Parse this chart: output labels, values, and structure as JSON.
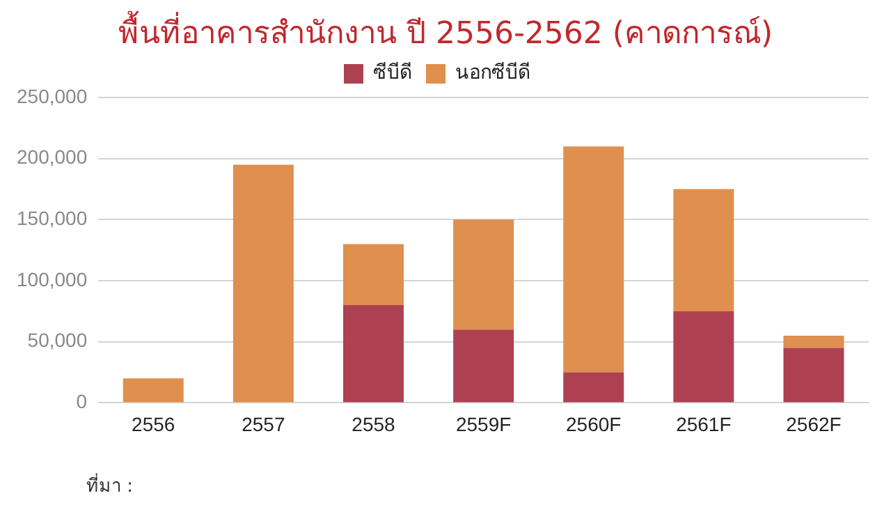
{
  "chart_data": {
    "type": "bar",
    "title": "พื้นที่อาคารสำนักงาน ปี 2556-2562 (คาดการณ์)",
    "categories": [
      "2556",
      "2557",
      "2558",
      "2559F",
      "2560F",
      "2561F",
      "2562F"
    ],
    "series": [
      {
        "name": "ซีบีดี",
        "color": "#ad4151",
        "values": [
          0,
          0,
          80000,
          60000,
          25000,
          75000,
          45000
        ]
      },
      {
        "name": "นอกซีบีดี",
        "color": "#df8f4e",
        "values": [
          20000,
          195000,
          50000,
          90000,
          185000,
          100000,
          10000
        ]
      }
    ],
    "stacked": true,
    "ylim": [
      0,
      250000
    ],
    "yticks": [
      0,
      {
        "value": 50000,
        "label": "50,000"
      },
      {
        "value": 100000,
        "label": "100,000"
      },
      {
        "value": 150000,
        "label": "150,000"
      },
      {
        "value": 200000,
        "label": "200,000"
      },
      {
        "value": 250000,
        "label": "250,000"
      }
    ],
    "grid": "y",
    "legend": "top",
    "annotations": [
      "ที่มา :"
    ]
  }
}
